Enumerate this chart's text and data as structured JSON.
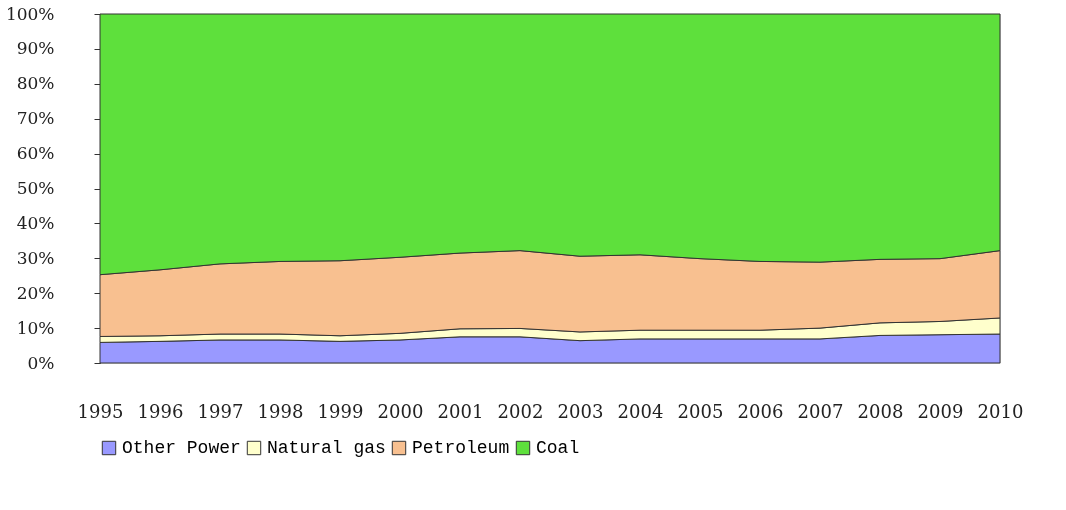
{
  "chart_data": {
    "type": "area",
    "stacked": true,
    "legend": "bottom",
    "grid": false,
    "categories": [
      "1995",
      "1996",
      "1997",
      "1998",
      "1999",
      "2000",
      "2001",
      "2002",
      "2003",
      "2004",
      "2005",
      "2006",
      "2007",
      "2008",
      "2009",
      "2010"
    ],
    "ylim": [
      0,
      100
    ],
    "yticks": [
      {
        "value": 0,
        "label": "0%"
      },
      {
        "value": 10,
        "label": "10%"
      },
      {
        "value": 20,
        "label": "20%"
      },
      {
        "value": 30,
        "label": "30%"
      },
      {
        "value": 40,
        "label": "40%"
      },
      {
        "value": 50,
        "label": "50%"
      },
      {
        "value": 60,
        "label": "60%"
      },
      {
        "value": 70,
        "label": "70%"
      },
      {
        "value": 80,
        "label": "80%"
      },
      {
        "value": 90,
        "label": "90%"
      },
      {
        "value": 100,
        "label": "100%"
      }
    ],
    "series": [
      {
        "name": "Other Power",
        "color": "#9999ff",
        "values": [
          5.9,
          6.2,
          6.6,
          6.6,
          6.2,
          6.6,
          7.5,
          7.5,
          6.4,
          6.9,
          6.9,
          6.9,
          6.9,
          7.9,
          8.1,
          8.3
        ]
      },
      {
        "name": "Natural gas",
        "color": "#ffffcc",
        "values": [
          1.7,
          1.6,
          1.7,
          1.7,
          1.6,
          1.9,
          2.3,
          2.4,
          2.5,
          2.5,
          2.5,
          2.5,
          3.1,
          3.6,
          3.8,
          4.6
        ]
      },
      {
        "name": "Petroleum",
        "color": "#f8c090",
        "values": [
          17.7,
          18.9,
          20.1,
          20.8,
          21.5,
          21.8,
          21.7,
          22.3,
          21.7,
          21.6,
          20.5,
          19.7,
          18.9,
          18.2,
          18.0,
          19.3
        ]
      },
      {
        "name": "Coal",
        "color": "#5ee03c",
        "values": [
          74.7,
          73.3,
          71.6,
          70.9,
          70.7,
          69.7,
          68.5,
          67.8,
          69.4,
          69.0,
          70.1,
          70.9,
          71.1,
          70.3,
          70.1,
          67.8
        ]
      }
    ]
  }
}
